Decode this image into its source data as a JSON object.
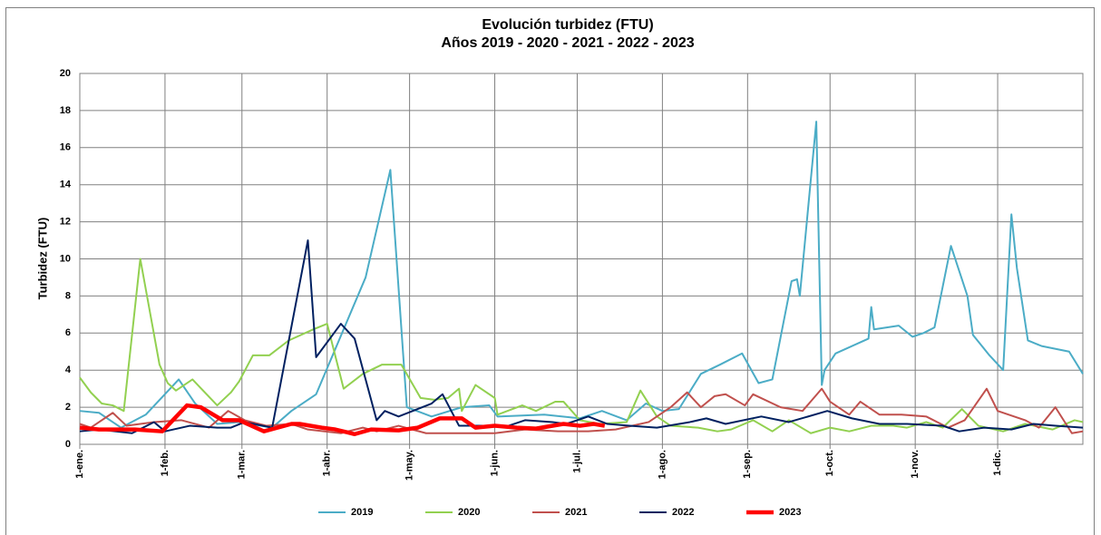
{
  "chart_data": {
    "type": "line",
    "title": [
      "Evolución turbidez (FTU)",
      "Años 2019 - 2020 - 2021 - 2022 - 2023"
    ],
    "y_label": "Turbidez (FTU)",
    "xlim": [
      0,
      365
    ],
    "xticks": [
      {
        "value": 0,
        "label": "1-ene."
      },
      {
        "value": 31,
        "label": "1-feb."
      },
      {
        "value": 59,
        "label": "1-mar."
      },
      {
        "value": 90,
        "label": "1-abr."
      },
      {
        "value": 120,
        "label": "1-may."
      },
      {
        "value": 151,
        "label": "1-jun."
      },
      {
        "value": 181,
        "label": "1-jul."
      },
      {
        "value": 212,
        "label": "1-ago."
      },
      {
        "value": 243,
        "label": "1-sep."
      },
      {
        "value": 273,
        "label": "1-oct."
      },
      {
        "value": 304,
        "label": "1-nov."
      },
      {
        "value": 334,
        "label": "1-dic."
      }
    ],
    "ylim": [
      0,
      20
    ],
    "yticks": [
      0,
      2,
      4,
      6,
      8,
      10,
      12,
      14,
      16,
      18,
      20
    ],
    "grid": true,
    "legend": "bottom",
    "series": [
      {
        "name": "2019",
        "color": "#4bacc6",
        "width": 2,
        "x": [
          0,
          7,
          15,
          24,
          36,
          42,
          50,
          58,
          70,
          77,
          86,
          104,
          113,
          119,
          128,
          139,
          149,
          152,
          169,
          182,
          190,
          199,
          206,
          212,
          218,
          226,
          233,
          241,
          247,
          252,
          259,
          261,
          262,
          268,
          270,
          271,
          275,
          287,
          288,
          289,
          298,
          303,
          307,
          311,
          317,
          323,
          325,
          331,
          336,
          339,
          341,
          345,
          350,
          360,
          365
        ],
        "values": [
          1.8,
          1.7,
          0.9,
          1.6,
          3.5,
          2.2,
          1.1,
          1.2,
          0.9,
          1.8,
          2.7,
          9.0,
          14.8,
          2.0,
          1.5,
          2.0,
          2.1,
          1.5,
          1.6,
          1.4,
          1.8,
          1.3,
          2.2,
          1.8,
          1.9,
          3.8,
          4.3,
          4.9,
          3.3,
          3.5,
          8.8,
          8.9,
          8.0,
          17.4,
          3.2,
          4.0,
          4.9,
          5.7,
          7.4,
          6.2,
          6.4,
          5.8,
          6.0,
          6.3,
          10.7,
          8.0,
          5.9,
          4.8,
          4.0,
          12.4,
          9.5,
          5.6,
          5.3,
          5.0,
          3.8
        ]
      },
      {
        "name": "2020",
        "color": "#92d050",
        "width": 2,
        "x": [
          0,
          4,
          8,
          12,
          16,
          22,
          29,
          32,
          35,
          41,
          50,
          55,
          58,
          63,
          69,
          76,
          85,
          90,
          96,
          103,
          110,
          117,
          124,
          129,
          134,
          138,
          139,
          144,
          151,
          152,
          161,
          166,
          173,
          176,
          182,
          189,
          199,
          204,
          210,
          215,
          225,
          232,
          237,
          245,
          252,
          258,
          266,
          273,
          280,
          288,
          296,
          301,
          308,
          314,
          321,
          327,
          336,
          344,
          354,
          362,
          365
        ],
        "values": [
          3.6,
          2.8,
          2.2,
          2.1,
          1.8,
          10.0,
          4.3,
          3.3,
          2.9,
          3.5,
          2.1,
          2.8,
          3.4,
          4.8,
          4.8,
          5.6,
          6.2,
          6.5,
          3.0,
          3.8,
          4.3,
          4.3,
          2.5,
          2.4,
          2.5,
          3.0,
          1.8,
          3.2,
          2.5,
          1.6,
          2.1,
          1.8,
          2.3,
          2.3,
          1.3,
          1.1,
          1.2,
          2.9,
          1.5,
          1.0,
          0.9,
          0.7,
          0.8,
          1.3,
          0.7,
          1.3,
          0.6,
          0.9,
          0.7,
          1.0,
          1.0,
          0.9,
          1.2,
          0.9,
          1.9,
          1.0,
          0.7,
          1.1,
          0.8,
          1.3,
          1.2
        ]
      },
      {
        "name": "2021",
        "color": "#c0504d",
        "width": 2,
        "x": [
          0,
          4,
          12,
          17,
          27,
          37,
          47,
          54,
          60,
          68,
          77,
          83,
          95,
          103,
          108,
          116,
          126,
          139,
          151,
          162,
          174,
          185,
          195,
          207,
          215,
          221,
          226,
          231,
          235,
          242,
          245,
          255,
          263,
          270,
          273,
          280,
          284,
          291,
          299,
          308,
          316,
          322,
          330,
          334,
          344,
          349,
          355,
          361,
          365
        ],
        "values": [
          1.1,
          0.9,
          1.7,
          1.0,
          1.2,
          1.3,
          0.9,
          1.8,
          1.3,
          1.0,
          1.1,
          0.8,
          0.6,
          0.9,
          0.7,
          1.0,
          0.6,
          0.6,
          0.6,
          0.8,
          0.7,
          0.7,
          0.8,
          1.2,
          2.0,
          2.8,
          2.0,
          2.6,
          2.7,
          2.1,
          2.7,
          2.0,
          1.8,
          3.0,
          2.3,
          1.6,
          2.3,
          1.6,
          1.6,
          1.5,
          0.9,
          1.3,
          3.0,
          1.8,
          1.3,
          0.9,
          2.0,
          0.6,
          0.7
        ]
      },
      {
        "name": "2022",
        "color": "#002060",
        "width": 2,
        "x": [
          0,
          7,
          19,
          27,
          31,
          40,
          50,
          55,
          60,
          70,
          83,
          86,
          95,
          100,
          108,
          111,
          116,
          128,
          132,
          138,
          146,
          156,
          162,
          172,
          177,
          185,
          192,
          200,
          210,
          222,
          228,
          235,
          248,
          258,
          272,
          281,
          291,
          301,
          314,
          320,
          329,
          339,
          347,
          355,
          365
        ],
        "values": [
          0.7,
          0.8,
          0.6,
          1.2,
          0.7,
          1.0,
          0.9,
          0.9,
          1.2,
          0.9,
          11.0,
          4.7,
          6.5,
          5.7,
          1.3,
          1.8,
          1.5,
          2.2,
          2.7,
          1.0,
          1.0,
          1.0,
          1.3,
          1.2,
          1.1,
          1.5,
          1.1,
          1.0,
          0.9,
          1.2,
          1.4,
          1.1,
          1.5,
          1.2,
          1.8,
          1.4,
          1.1,
          1.1,
          1.0,
          0.7,
          0.9,
          0.8,
          1.1,
          1.0,
          0.9
        ]
      },
      {
        "name": "2023",
        "color": "#ff0000",
        "width": 4.5,
        "x": [
          0,
          7,
          20,
          30,
          39,
          44,
          52,
          58,
          67,
          77,
          80,
          88,
          93,
          100,
          106,
          116,
          123,
          131,
          139,
          144,
          151,
          159,
          166,
          176,
          182,
          187,
          191
        ],
        "values": [
          0.9,
          0.8,
          0.8,
          0.7,
          2.1,
          2.0,
          1.3,
          1.3,
          0.7,
          1.1,
          1.1,
          0.9,
          0.8,
          0.55,
          0.8,
          0.75,
          0.9,
          1.4,
          1.4,
          0.9,
          1.0,
          0.9,
          0.85,
          1.1,
          1.0,
          1.1,
          1.0
        ]
      }
    ]
  }
}
